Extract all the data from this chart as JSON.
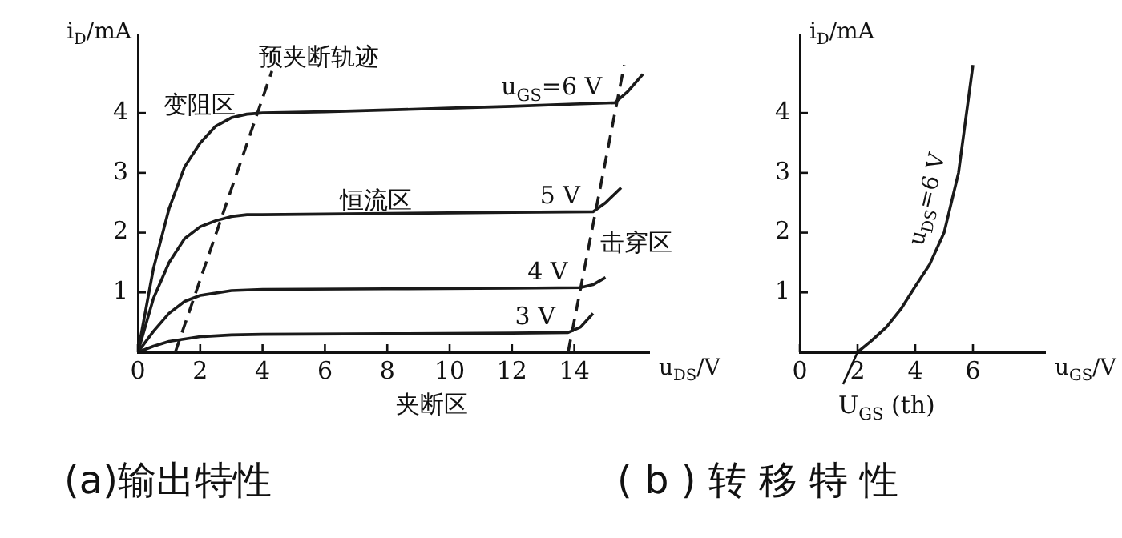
{
  "chart_data": [
    {
      "type": "line",
      "title": "(a)输出特性",
      "xlabel": "u$_{DS}$/V",
      "ylabel": "i$_{D}$/mA",
      "xlim": [
        0,
        16.4
      ],
      "ylim": [
        0,
        5.3
      ],
      "xticks": [
        0,
        2,
        4,
        6,
        8,
        10,
        12,
        14
      ],
      "yticks": [
        {
          "value": 0,
          "label": null
        },
        1,
        2,
        3,
        4
      ],
      "grid": false,
      "legend": false,
      "marker": "none",
      "annotations": [
        "变阻区",
        "恒流区",
        "击穿区",
        "夹断区"
      ],
      "series": [
        {
          "name": "u$_{GS}$=6 V",
          "color": "#1a1a1a",
          "x": [
            0,
            0.5,
            1,
            1.5,
            2,
            2.5,
            3,
            3.5,
            4,
            6,
            8,
            10,
            12,
            14,
            15.3,
            15.7,
            16.2
          ],
          "values": [
            0,
            1.4,
            2.4,
            3.1,
            3.5,
            3.78,
            3.92,
            3.98,
            4.0,
            4.02,
            4.05,
            4.08,
            4.11,
            4.15,
            4.17,
            4.35,
            4.65
          ]
        },
        {
          "name": "5 V",
          "color": "#1a1a1a",
          "x": [
            0,
            0.5,
            1,
            1.5,
            2,
            2.5,
            3,
            3.5,
            4,
            8,
            12,
            14.6,
            15.0,
            15.5
          ],
          "values": [
            0,
            0.9,
            1.5,
            1.9,
            2.1,
            2.2,
            2.27,
            2.3,
            2.3,
            2.32,
            2.34,
            2.35,
            2.5,
            2.75
          ]
        },
        {
          "name": "4 V",
          "color": "#1a1a1a",
          "x": [
            0,
            0.5,
            1,
            1.5,
            2,
            3,
            4,
            8,
            12,
            14.2,
            14.6,
            15.0
          ],
          "values": [
            0,
            0.35,
            0.65,
            0.85,
            0.95,
            1.03,
            1.05,
            1.06,
            1.07,
            1.08,
            1.13,
            1.25
          ]
        },
        {
          "name": "3 V",
          "color": "#1a1a1a",
          "x": [
            0,
            0.5,
            1,
            2,
            3,
            4,
            8,
            12,
            13.8,
            14.2,
            14.6
          ],
          "values": [
            0,
            0.1,
            0.18,
            0.26,
            0.29,
            0.3,
            0.31,
            0.32,
            0.33,
            0.42,
            0.65
          ]
        },
        {
          "name": "预夹断轨迹",
          "color": "#1a1a1a",
          "line_style": "dashed",
          "x": [
            1.2,
            4.3
          ],
          "values": [
            0,
            4.7
          ]
        },
        {
          "color": "#1a1a1a",
          "line_style": "dashed",
          "x": [
            13.8,
            15.6
          ],
          "values": [
            0,
            4.8
          ]
        }
      ]
    },
    {
      "type": "line",
      "title": "( b ) 转 移 特 性",
      "xlabel": "u$_{GS}$/V",
      "ylabel": "i$_{D}$/mA",
      "xlim": [
        0,
        8.5
      ],
      "ylim": [
        0,
        5.3
      ],
      "xticks": [
        0,
        2,
        4,
        6
      ],
      "yticks": [
        {
          "value": 0,
          "label": null
        },
        1,
        2,
        3,
        4
      ],
      "grid": false,
      "legend": false,
      "marker": "none",
      "annotations": [
        {
          "text": "U$_{GS}$ (th)",
          "x": 2,
          "y": 0
        }
      ],
      "series": [
        {
          "name": "u$_{DS}$=6 V",
          "color": "#1a1a1a",
          "x": [
            2,
            2.5,
            3,
            3.5,
            4,
            4.5,
            5,
            5.5,
            6
          ],
          "values": [
            0,
            0.2,
            0.42,
            0.72,
            1.1,
            1.47,
            2.0,
            3.0,
            4.8
          ]
        }
      ]
    }
  ]
}
